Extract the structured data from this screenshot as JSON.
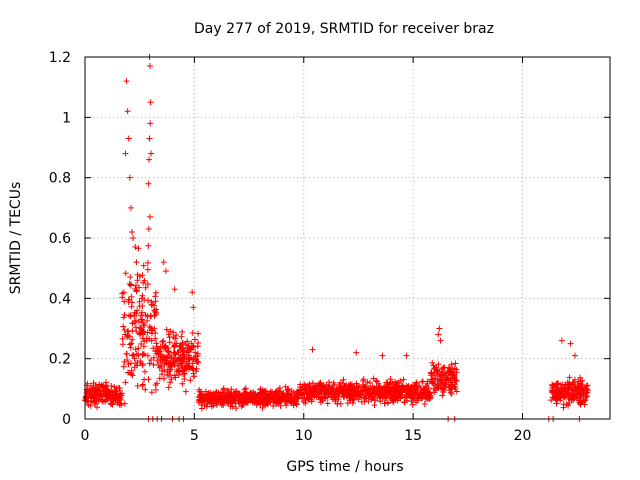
{
  "chart_data": {
    "type": "scatter",
    "title": "Day 277 of 2019, SRMTID for receiver braz",
    "xlabel": "GPS time / hours",
    "ylabel": "SRMTID / TECUs",
    "xlim": [
      0,
      24
    ],
    "ylim": [
      0,
      1.2
    ],
    "xticks": [
      0,
      5,
      10,
      15,
      20
    ],
    "xtick_labels": [
      "0",
      "5",
      "10",
      "15",
      "20"
    ],
    "yticks": [
      0,
      0.2,
      0.4,
      0.6,
      0.8,
      1.0,
      1.2
    ],
    "ytick_labels": [
      "0",
      "0.2",
      "0.4",
      "0.6",
      "0.8",
      "1",
      "1.2"
    ],
    "grid": true,
    "marker": "plus",
    "color": "#ff0000",
    "series": [
      {
        "name": "SRMTID",
        "segments": [
          {
            "x_start": 0.0,
            "x_end": 1.7,
            "mean": 0.08,
            "spread": 0.05
          },
          {
            "x_start": 1.7,
            "x_end": 3.3,
            "mean": 0.3,
            "spread": 0.3
          },
          {
            "x_start": 3.3,
            "x_end": 5.2,
            "mean": 0.2,
            "spread": 0.12
          },
          {
            "x_start": 5.2,
            "x_end": 9.7,
            "mean": 0.07,
            "spread": 0.04
          },
          {
            "x_start": 9.7,
            "x_end": 15.8,
            "mean": 0.09,
            "spread": 0.05
          },
          {
            "x_start": 15.8,
            "x_end": 17.0,
            "mean": 0.13,
            "spread": 0.07
          },
          {
            "x_start": 21.3,
            "x_end": 23.0,
            "mean": 0.09,
            "spread": 0.06
          }
        ],
        "peaks": [
          {
            "x": 1.9,
            "y": 1.12
          },
          {
            "x": 1.95,
            "y": 1.02
          },
          {
            "x": 2.0,
            "y": 0.93
          },
          {
            "x": 1.85,
            "y": 0.88
          },
          {
            "x": 2.05,
            "y": 0.8
          },
          {
            "x": 2.1,
            "y": 0.7
          },
          {
            "x": 2.15,
            "y": 0.62
          },
          {
            "x": 2.2,
            "y": 0.6
          },
          {
            "x": 2.3,
            "y": 0.57
          },
          {
            "x": 2.35,
            "y": 0.52
          },
          {
            "x": 2.4,
            "y": 0.46
          },
          {
            "x": 2.6,
            "y": 0.4
          },
          {
            "x": 2.95,
            "y": 1.2
          },
          {
            "x": 2.97,
            "y": 1.17
          },
          {
            "x": 3.0,
            "y": 1.05
          },
          {
            "x": 2.98,
            "y": 0.98
          },
          {
            "x": 2.95,
            "y": 0.93
          },
          {
            "x": 3.02,
            "y": 0.88
          },
          {
            "x": 2.93,
            "y": 0.86
          },
          {
            "x": 2.9,
            "y": 0.78
          },
          {
            "x": 2.97,
            "y": 0.67
          },
          {
            "x": 2.92,
            "y": 0.63
          },
          {
            "x": 3.6,
            "y": 0.52
          },
          {
            "x": 3.7,
            "y": 0.49
          },
          {
            "x": 4.1,
            "y": 0.43
          },
          {
            "x": 4.9,
            "y": 0.42
          },
          {
            "x": 4.95,
            "y": 0.37
          },
          {
            "x": 16.2,
            "y": 0.3
          },
          {
            "x": 16.15,
            "y": 0.28
          },
          {
            "x": 16.25,
            "y": 0.26
          },
          {
            "x": 10.4,
            "y": 0.23
          },
          {
            "x": 12.4,
            "y": 0.22
          },
          {
            "x": 13.6,
            "y": 0.21
          },
          {
            "x": 14.7,
            "y": 0.21
          },
          {
            "x": 21.8,
            "y": 0.26
          },
          {
            "x": 22.2,
            "y": 0.25
          },
          {
            "x": 22.4,
            "y": 0.21
          }
        ],
        "zero_points_x": [
          2.9,
          3.1,
          3.3,
          3.5,
          4.0,
          4.3,
          4.5,
          16.6,
          16.9,
          21.2,
          21.4,
          22.6
        ]
      }
    ]
  }
}
